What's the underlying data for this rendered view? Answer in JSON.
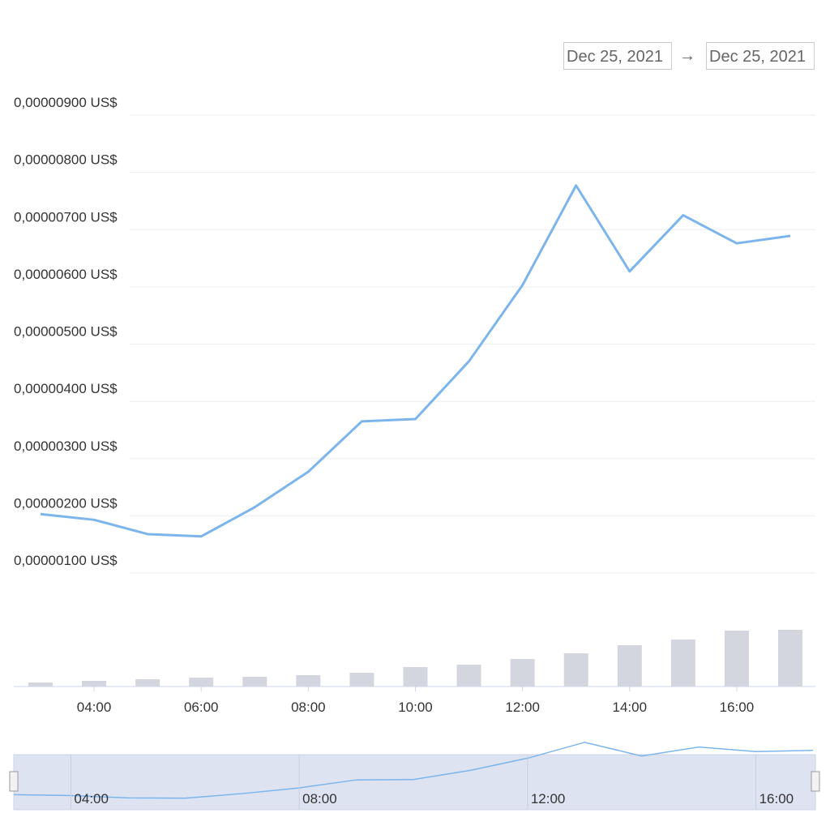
{
  "date_range": {
    "from": "Dec 25, 2021",
    "separator": "→",
    "to": "Dec 25, 2021"
  },
  "chart_data": {
    "type": "line",
    "categories": [
      null,
      "04:00",
      null,
      "06:00",
      null,
      "08:00",
      null,
      "10:00",
      null,
      "12:00",
      null,
      "14:00",
      null,
      "16:00",
      null
    ],
    "series": [
      {
        "type": "line",
        "color": "#7cb5ec",
        "values": [
          2.03e-06,
          1.93e-06,
          1.68e-06,
          1.64e-06,
          2.15e-06,
          2.77e-06,
          3.65e-06,
          3.69e-06,
          4.7e-06,
          6.03e-06,
          7.77e-06,
          6.27e-06,
          7.25e-06,
          6.76e-06,
          6.89e-06
        ]
      },
      {
        "type": "bar",
        "color": "#d3d6de",
        "values": [
          5,
          7,
          9,
          11,
          12,
          14,
          17,
          24,
          27,
          34,
          41,
          51,
          58,
          69,
          70
        ]
      }
    ],
    "ylim": [
      1e-06,
      9e-06
    ],
    "yticks": [
      {
        "value": 1e-06,
        "label": "0,00000100 US$"
      },
      {
        "value": 2e-06,
        "label": "0,00000200 US$"
      },
      {
        "value": 3e-06,
        "label": "0,00000300 US$"
      },
      {
        "value": 4e-06,
        "label": "0,00000400 US$"
      },
      {
        "value": 5e-06,
        "label": "0,00000500 US$"
      },
      {
        "value": 6e-06,
        "label": "0,00000600 US$"
      },
      {
        "value": 7e-06,
        "label": "0,00000700 US$"
      },
      {
        "value": 8e-06,
        "label": "0,00000800 US$"
      },
      {
        "value": 9e-06,
        "label": "0,00000900 US$"
      }
    ],
    "bar_ylim": [
      0,
      70
    ],
    "grid": true,
    "navigator": {
      "ticks": [
        "04:00",
        "08:00",
        "12:00",
        "16:00"
      ]
    }
  }
}
